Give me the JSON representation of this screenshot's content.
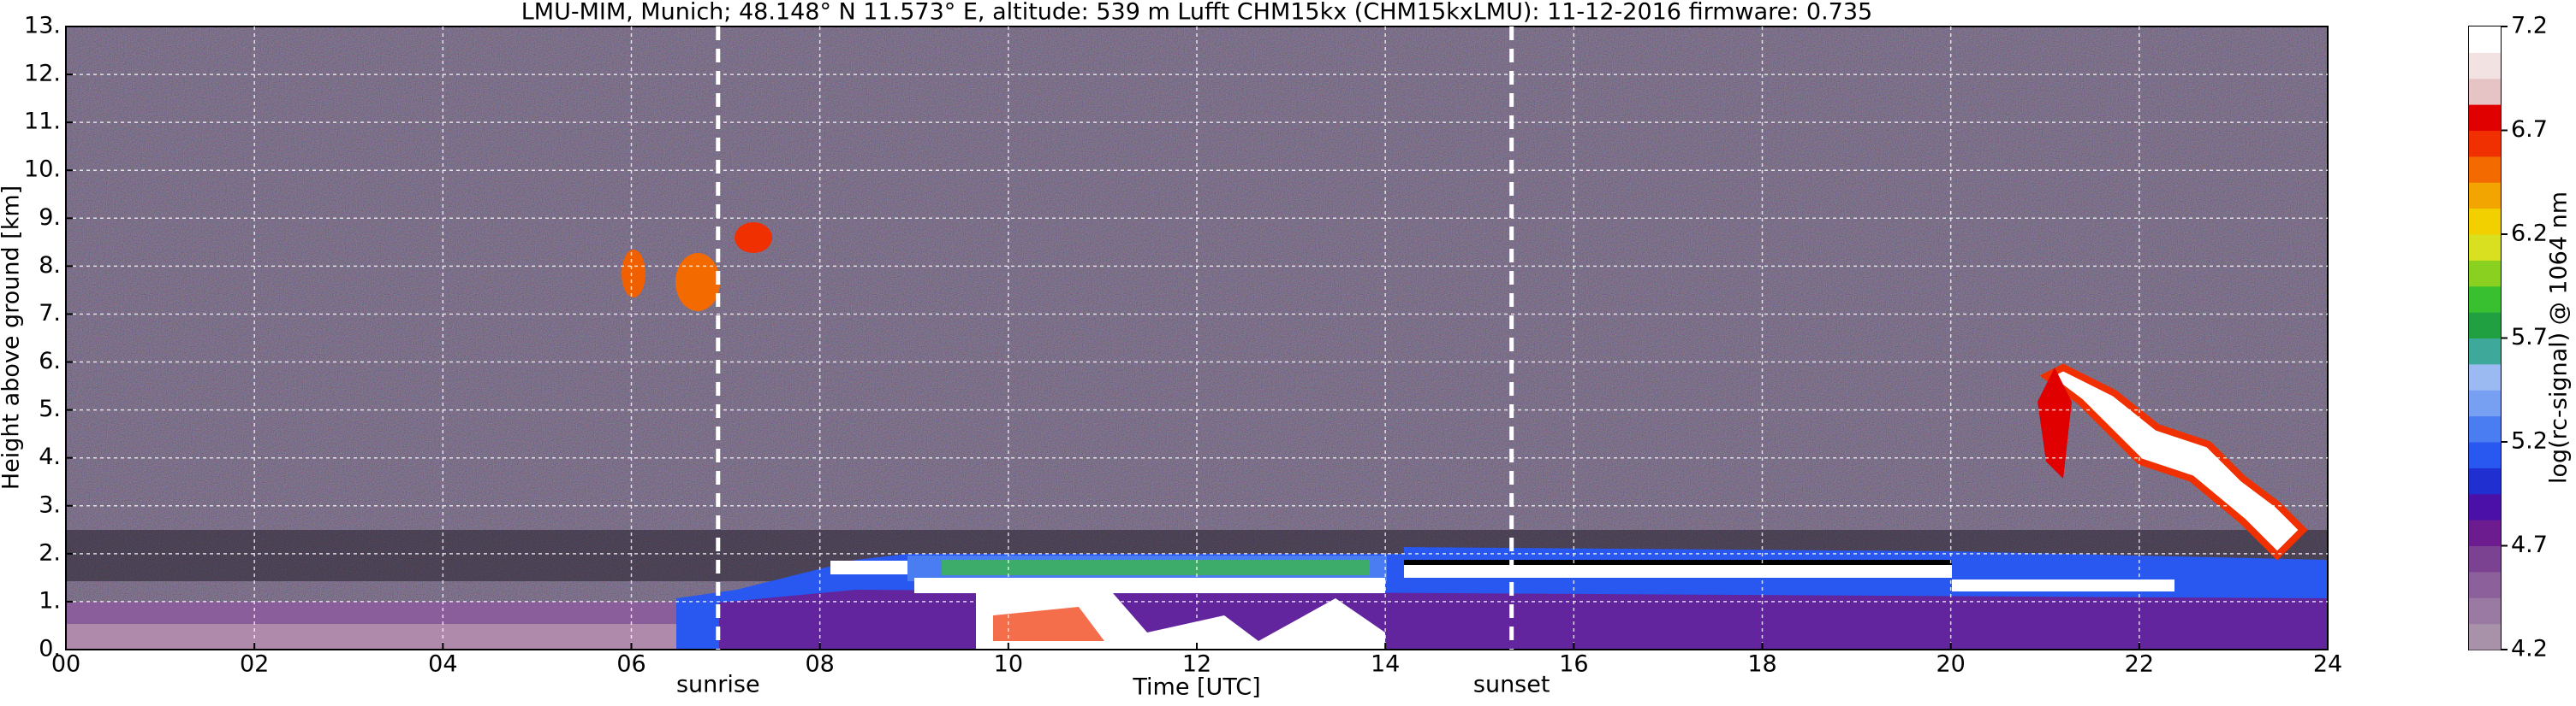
{
  "chart_data": {
    "type": "heatmap",
    "title": "LMU-MIM, Munich; 48.148° N 11.573° E, altitude: 539 m    Lufft CHM15kx (CHM15kxLMU): 11-12-2016    firmware: 0.735",
    "x_label": "Time [UTC]",
    "y_label": "Height above ground [km]",
    "xlim": [
      0,
      24
    ],
    "ylim": [
      0,
      13
    ],
    "xticks": [
      {
        "value": 0,
        "label": "00"
      },
      {
        "value": 2,
        "label": "02"
      },
      {
        "value": 4,
        "label": "04"
      },
      {
        "value": 6,
        "label": "06"
      },
      {
        "value": 8,
        "label": "08"
      },
      {
        "value": 10,
        "label": "10"
      },
      {
        "value": 12,
        "label": "12"
      },
      {
        "value": 14,
        "label": "14"
      },
      {
        "value": 16,
        "label": "16"
      },
      {
        "value": 18,
        "label": "18"
      },
      {
        "value": 20,
        "label": "20"
      },
      {
        "value": 22,
        "label": "22"
      },
      {
        "value": 24,
        "label": "24"
      }
    ],
    "yticks": [
      {
        "value": 0,
        "label": "0."
      },
      {
        "value": 1,
        "label": "1."
      },
      {
        "value": 2,
        "label": "2."
      },
      {
        "value": 3,
        "label": "3."
      },
      {
        "value": 4,
        "label": "4."
      },
      {
        "value": 5,
        "label": "5."
      },
      {
        "value": 6,
        "label": "6."
      },
      {
        "value": 7,
        "label": "7."
      },
      {
        "value": 8,
        "label": "8."
      },
      {
        "value": 9,
        "label": "9."
      },
      {
        "value": 10,
        "label": "10."
      },
      {
        "value": 11,
        "label": "11."
      },
      {
        "value": 12,
        "label": "12."
      },
      {
        "value": 13,
        "label": "13."
      }
    ],
    "grid": true,
    "annotations": [
      {
        "label": "sunrise",
        "x": 6.92
      },
      {
        "label": "sunset",
        "x": 15.34
      }
    ],
    "colorbar": {
      "label": "log(rc-signal) @ 1064 nm",
      "lim": [
        4.2,
        7.2
      ],
      "ticks": [
        4.2,
        4.7,
        5.2,
        5.7,
        6.2,
        6.7,
        7.2
      ],
      "colors": [
        "#a892aa",
        "#9a7aa2",
        "#8c609a",
        "#7c4292",
        "#6c1c8e",
        "#4a10a8",
        "#2030d0",
        "#2858f0",
        "#4a7cf2",
        "#78a0f2",
        "#9cbaf2",
        "#3ea89a",
        "#20a040",
        "#38c030",
        "#8ad020",
        "#d8e020",
        "#f2d000",
        "#f2a400",
        "#f26a00",
        "#f03000",
        "#e00000",
        "#e6c4c6",
        "#f2e2e2",
        "#ffffff"
      ]
    }
  }
}
